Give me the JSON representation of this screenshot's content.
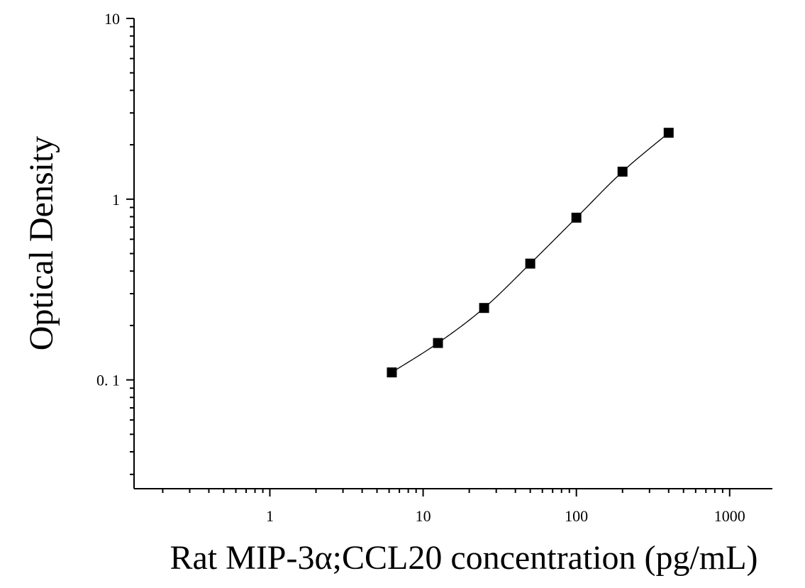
{
  "chart_data": {
    "type": "scatter",
    "title": "",
    "xlabel": "Rat MIP-3α;CCL20 concentration (pg/mL)",
    "ylabel": "Optical Density",
    "xscale": "log",
    "yscale": "log",
    "xlim": [
      0.13,
      1900
    ],
    "ylim": [
      0.025,
      10
    ],
    "x_ticks": [
      {
        "value": 1,
        "label": "1"
      },
      {
        "value": 10,
        "label": "10"
      },
      {
        "value": 100,
        "label": "100"
      },
      {
        "value": 1000,
        "label": "1000"
      }
    ],
    "y_ticks": [
      {
        "value": 0.1,
        "label": "0. 1"
      },
      {
        "value": 1,
        "label": "1"
      },
      {
        "value": 10,
        "label": "10"
      }
    ],
    "grid": false,
    "legend": "none",
    "marker": "square",
    "marker_color": "#000000",
    "line_color": "#000000",
    "fit_curve": true,
    "series": [
      {
        "x": [
          6.25,
          12.5,
          25,
          50,
          100,
          200,
          400
        ],
        "y": [
          0.11,
          0.16,
          0.25,
          0.44,
          0.79,
          1.42,
          2.33
        ]
      }
    ]
  }
}
